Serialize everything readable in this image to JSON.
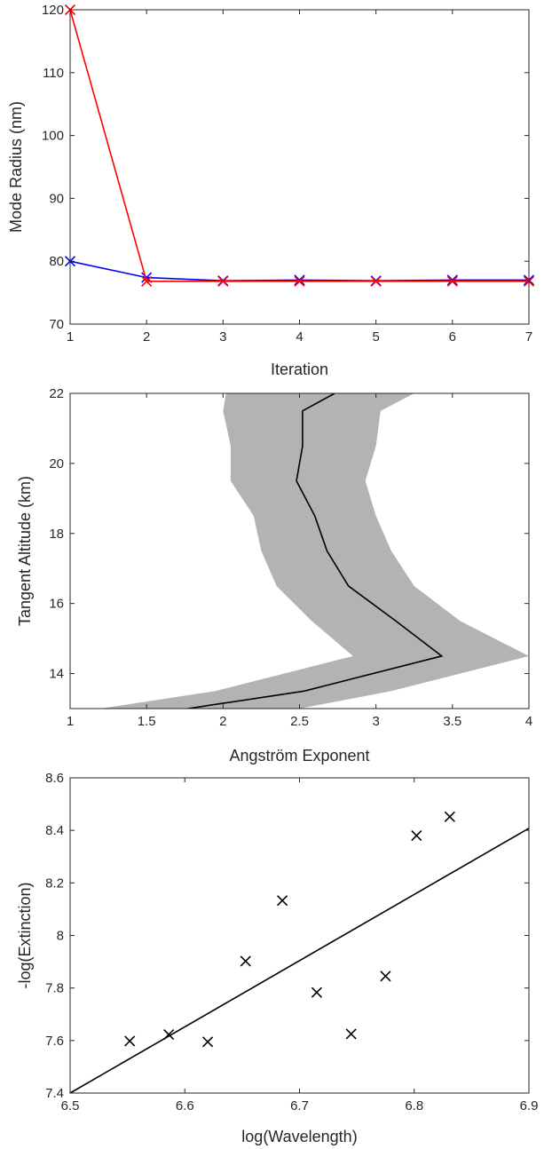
{
  "chart_data": [
    {
      "type": "line",
      "xlabel": "Iteration",
      "ylabel": "Mode Radius (nm)",
      "xlim": [
        1,
        7
      ],
      "ylim": [
        70,
        120
      ],
      "xticks": [
        "1",
        "2",
        "3",
        "4",
        "5",
        "6",
        "7"
      ],
      "yticks": [
        "70",
        "80",
        "90",
        "100",
        "110",
        "120"
      ],
      "grid": false,
      "x": [
        1,
        2,
        3,
        4,
        5,
        6,
        7
      ],
      "series": [
        {
          "color": "#0000ff",
          "marker": "x",
          "values": [
            80,
            77.4,
            76.9,
            77.0,
            76.9,
            77.0,
            77.0
          ]
        },
        {
          "color": "#ff0000",
          "marker": "x",
          "values": [
            120,
            76.8,
            76.8,
            76.8,
            76.8,
            76.8,
            76.8
          ]
        }
      ]
    },
    {
      "type": "area",
      "xlabel": "Angström Exponent",
      "ylabel": "Tangent Altitude (km)",
      "xlim": [
        1,
        4
      ],
      "ylim": [
        13,
        22
      ],
      "xticks": [
        "1",
        "1.5",
        "2",
        "2.5",
        "3",
        "3.5",
        "4"
      ],
      "yticks": [
        "14",
        "16",
        "18",
        "20",
        "22"
      ],
      "grid": false,
      "y": [
        13,
        13.5,
        14.5,
        15.5,
        16.5,
        17.5,
        18.5,
        19.5,
        20.5,
        21.5,
        22
      ],
      "series": [
        {
          "color": "#000000",
          "values": [
            1.77,
            2.53,
            3.43,
            3.13,
            2.82,
            2.68,
            2.6,
            2.48,
            2.52,
            2.52,
            2.73
          ]
        }
      ],
      "band": {
        "color": "#b3b3b3",
        "lower": [
          1.2,
          1.95,
          2.85,
          2.58,
          2.35,
          2.25,
          2.2,
          2.05,
          2.05,
          2.0,
          2.02
        ],
        "upper": [
          2.5,
          3.1,
          4.0,
          3.55,
          3.25,
          3.1,
          3.0,
          2.93,
          3.0,
          3.03,
          3.25
        ]
      }
    },
    {
      "type": "scatter",
      "xlabel": "log(Wavelength)",
      "ylabel": "-log(Extinction)",
      "xlim": [
        6.5,
        6.9
      ],
      "ylim": [
        7.4,
        8.6
      ],
      "xticks": [
        "6.5",
        "6.6",
        "6.7",
        "6.8",
        "6.9"
      ],
      "yticks": [
        "7.4",
        "7.6",
        "7.8",
        "8",
        "8.2",
        "8.4",
        "8.6"
      ],
      "grid": false,
      "points": {
        "x": [
          6.552,
          6.586,
          6.62,
          6.653,
          6.685,
          6.715,
          6.745,
          6.775,
          6.802,
          6.831
        ],
        "y": [
          7.598,
          7.623,
          7.595,
          7.902,
          8.133,
          7.783,
          7.625,
          7.845,
          8.38,
          8.452
        ]
      },
      "fit_line": {
        "x": [
          6.5,
          6.9
        ],
        "y": [
          7.4,
          8.408
        ]
      }
    }
  ]
}
